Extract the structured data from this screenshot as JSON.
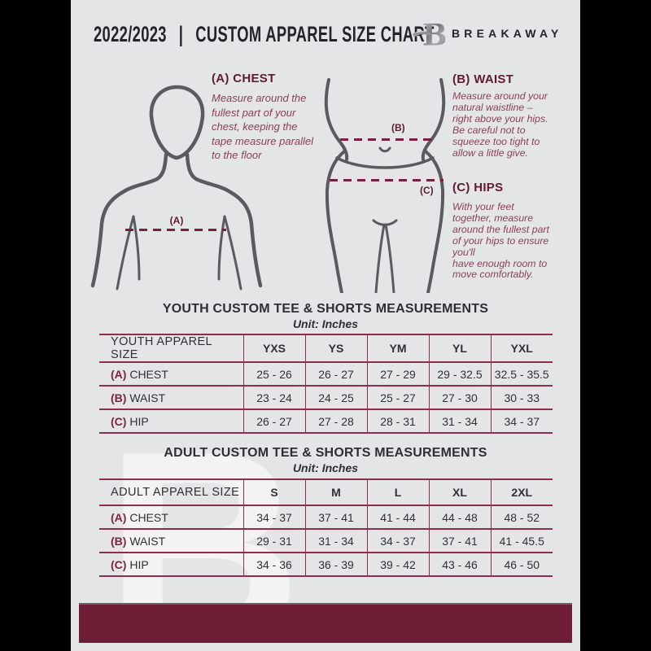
{
  "header": {
    "title": "2022/2023  |  CUSTOM APPAREL SIZE CHART",
    "brand": "BREAKAWAY",
    "logo_letter": "B"
  },
  "guides": {
    "chest": {
      "heading": "(A) CHEST",
      "body": "Measure around the\nfullest part of your\nchest, keeping the\ntape measure parallel\nto the floor"
    },
    "waist": {
      "heading": "(B) WAIST",
      "body": "Measure around your\nnatural waistline –\nright above your hips.\nBe careful not to\nsqueeze too tight to\nallow a little give."
    },
    "hips": {
      "heading": "(C) HIPS",
      "body": "With your feet\ntogether, measure\naround the fullest part\nof your hips to ensure\nyou'll\nhave enough room to\nmove comfortably."
    },
    "markers": {
      "a": "(A)",
      "b": "(B)",
      "c": "(C)"
    }
  },
  "youth_table": {
    "title": "YOUTH CUSTOM TEE & SHORTS MEASUREMENTS",
    "unit": "Unit: Inches",
    "columns": [
      "YOUTH APPAREL SIZE",
      "YXS",
      "YS",
      "YM",
      "YL",
      "YXL"
    ],
    "rows": [
      {
        "prefix": "(A)",
        "label": "CHEST",
        "values": [
          "25 - 26",
          "26 - 27",
          "27 - 29",
          "29 - 32.5",
          "32.5 - 35.5"
        ]
      },
      {
        "prefix": "(B)",
        "label": "WAIST",
        "values": [
          "23 - 24",
          "24 - 25",
          "25 - 27",
          "27 - 30",
          "30 - 33"
        ]
      },
      {
        "prefix": "(C)",
        "label": "HIP",
        "values": [
          "26 - 27",
          "27 - 28",
          "28 - 31",
          "31 - 34",
          "34 - 37"
        ]
      }
    ]
  },
  "adult_table": {
    "title": "ADULT CUSTOM TEE & SHORTS MEASUREMENTS",
    "unit": "Unit: Inches",
    "columns": [
      "ADULT APPAREL SIZE",
      "S",
      "M",
      "L",
      "XL",
      "2XL"
    ],
    "rows": [
      {
        "prefix": "(A)",
        "label": "CHEST",
        "values": [
          "34 - 37",
          "37 - 41",
          "41 - 44",
          "44 - 48",
          "48 - 52"
        ]
      },
      {
        "prefix": "(B)",
        "label": "WAIST",
        "values": [
          "29 - 31",
          "31 - 34",
          "34 - 37",
          "37 - 41",
          "41 - 45.5"
        ]
      },
      {
        "prefix": "(C)",
        "label": "HIP",
        "values": [
          "34 - 36",
          "36 - 39",
          "39 - 42",
          "43 - 46",
          "46 - 50"
        ]
      }
    ]
  },
  "watermark_letter": "B",
  "colors": {
    "bg": "#e4e5e7",
    "maroon-dark": "#5f1b33",
    "maroon-mid": "#8a3f58",
    "maroon-line": "#8e2e48",
    "dash": "#7b1f3c",
    "footer": "#6f1c35",
    "figure": "#5a5b5e"
  }
}
